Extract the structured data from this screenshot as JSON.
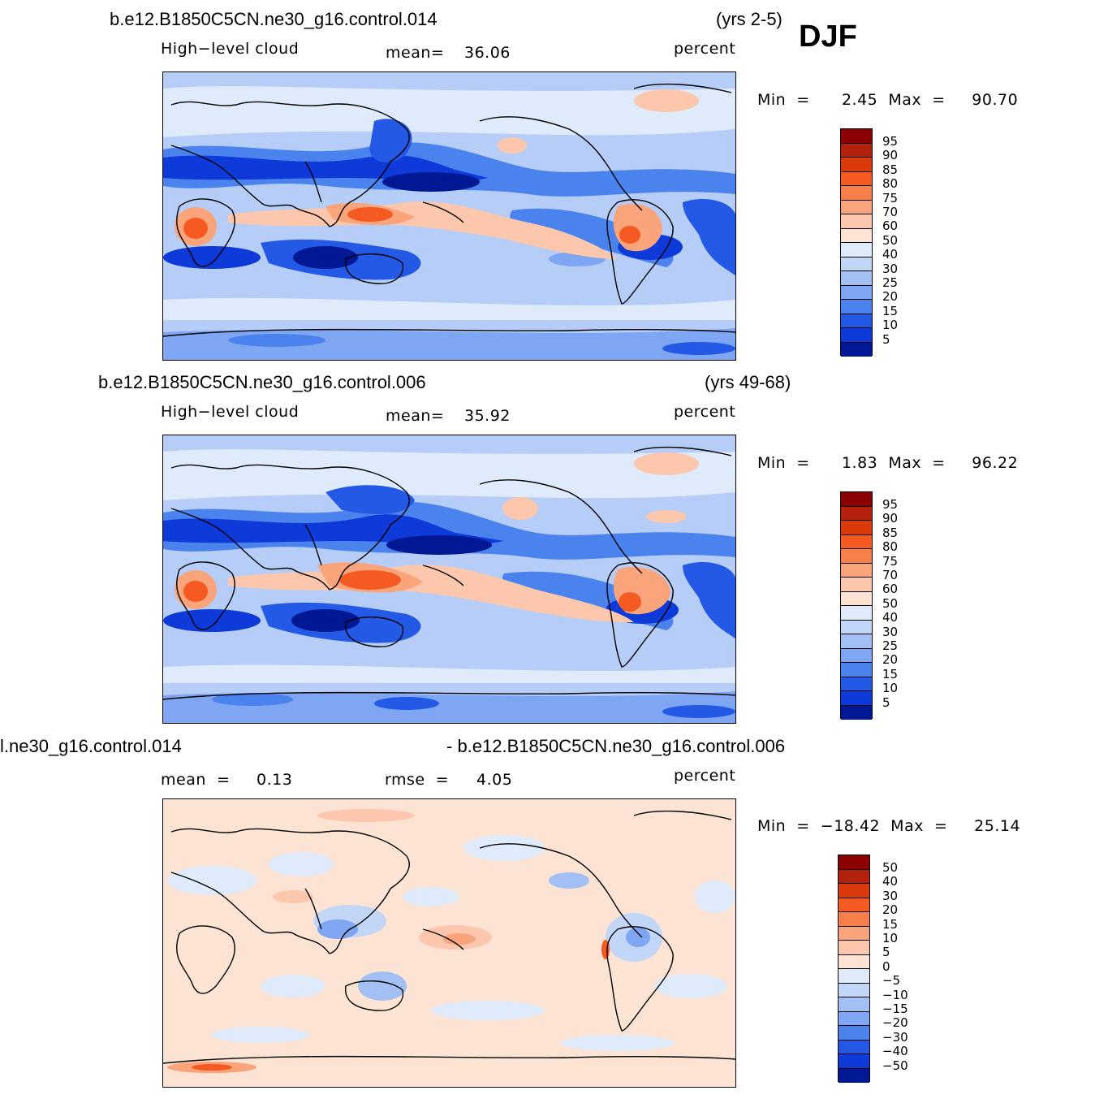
{
  "season": "DJF",
  "palette_abs": [
    "#8b0000",
    "#b3200c",
    "#db3a0c",
    "#f55a22",
    "#f7804a",
    "#f9a47a",
    "#fcc7ac",
    "#fde3d4",
    "#dfeafb",
    "#c2d6f7",
    "#a3c0f4",
    "#7ea6f2",
    "#4a82ee",
    "#2459e6",
    "#0d3ad8",
    "#0420bf",
    "#001894"
  ],
  "palette_diff": [
    "#8b0000",
    "#b3200c",
    "#db3a0c",
    "#f55a22",
    "#f7804a",
    "#f9a47a",
    "#fcc7ac",
    "#fde3d4",
    "#dfeafb",
    "#c2d6f7",
    "#a3c0f4",
    "#7ea6f2",
    "#4a82ee",
    "#2459e6",
    "#0d3ad8",
    "#0420bf",
    "#001894"
  ],
  "panels": [
    {
      "case": "b.e12.B1850C5CN.ne30_g16.control.014",
      "years": "(yrs 2-5)",
      "left_label": "High−level  cloud",
      "stat_label": "mean=",
      "stat_value": "36.06",
      "units": "percent",
      "min_max": "Min  =      2.45  Max  =     90.70",
      "colorbar_labels": [
        "95",
        "90",
        "85",
        "80",
        "75",
        "70",
        "60",
        "50",
        "40",
        "30",
        "25",
        "20",
        "15",
        "10",
        "5"
      ]
    },
    {
      "case": "b.e12.B1850C5CN.ne30_g16.control.006",
      "years": "(yrs 49-68)",
      "left_label": "High−level  cloud",
      "stat_label": "mean=",
      "stat_value": "35.92",
      "units": "percent",
      "min_max": "Min  =      1.83  Max  =     96.22",
      "colorbar_labels": [
        "95",
        "90",
        "85",
        "80",
        "75",
        "70",
        "60",
        "50",
        "40",
        "30",
        "25",
        "20",
        "15",
        "10",
        "5"
      ]
    },
    {
      "case": "l.ne30_g16.control.014",
      "case2": "- b.e12.B1850C5CN.ne30_g16.control.006",
      "left_label": "mean  =",
      "left_value": "0.13",
      "stat_label": "rmse  =",
      "stat_value": "4.05",
      "units": "percent",
      "min_max": "Min  =  −18.42  Max  =     25.14",
      "colorbar_labels": [
        "50",
        "40",
        "30",
        "20",
        "15",
        "10",
        "5",
        "0",
        "−5",
        "−10",
        "−15",
        "−20",
        "−30",
        "−40",
        "−50"
      ]
    }
  ]
}
